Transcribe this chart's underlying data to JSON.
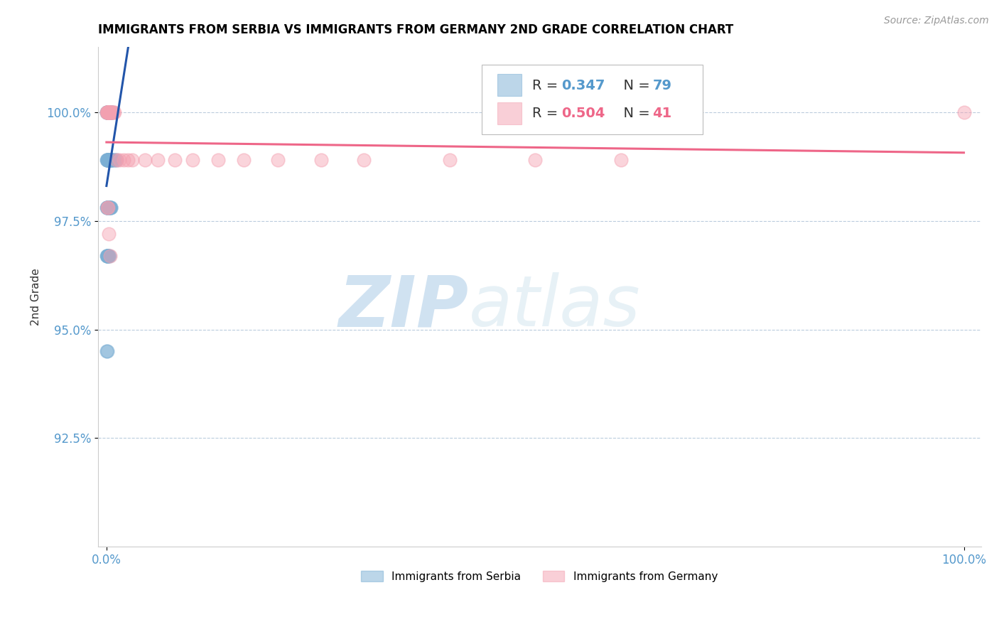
{
  "title": "IMMIGRANTS FROM SERBIA VS IMMIGRANTS FROM GERMANY 2ND GRADE CORRELATION CHART",
  "source_text": "Source: ZipAtlas.com",
  "ylabel": "2nd Grade",
  "legend_labels": [
    "Immigrants from Serbia",
    "Immigrants from Germany"
  ],
  "legend_R": [
    0.347,
    0.504
  ],
  "legend_N": [
    79,
    41
  ],
  "blue_color": "#7BAFD4",
  "pink_color": "#F4A0B0",
  "blue_line_color": "#2255AA",
  "pink_line_color": "#EE6688",
  "watermark_zip": "ZIP",
  "watermark_atlas": "atlas",
  "title_fontsize": 12,
  "axis_tick_color": "#5599CC",
  "grid_color": "#BBCCDD",
  "y_min": 90.0,
  "y_max": 101.5,
  "x_min": -1.0,
  "x_max": 102.0,
  "y_ticks": [
    92.5,
    95.0,
    97.5,
    100.0
  ],
  "y_tick_labels": [
    "92.5%",
    "95.0%",
    "97.5%",
    "100.0%"
  ],
  "x_ticks": [
    0.0,
    100.0
  ],
  "x_tick_labels": [
    "0.0%",
    "100.0%"
  ],
  "blue_x": [
    0.05,
    0.07,
    0.08,
    0.1,
    0.12,
    0.15,
    0.18,
    0.2,
    0.22,
    0.25,
    0.28,
    0.3,
    0.12,
    0.14,
    0.16,
    0.18,
    0.2,
    0.22,
    0.25,
    0.28,
    0.3,
    0.35,
    0.4,
    0.45,
    0.5,
    0.55,
    0.6,
    0.7,
    0.05,
    0.07,
    0.08,
    0.1,
    0.12,
    0.14,
    0.16,
    0.18,
    0.2,
    0.25,
    0.28,
    0.32,
    0.38,
    0.42,
    0.5,
    0.55,
    0.6,
    0.65,
    0.8,
    1.0,
    1.2,
    0.05,
    0.07,
    0.08,
    0.1,
    0.12,
    0.14,
    0.16,
    0.18,
    0.2,
    0.22,
    0.25,
    0.28,
    0.3,
    0.35,
    0.4,
    0.45,
    0.5,
    0.55,
    0.05,
    0.07,
    0.08,
    0.1,
    0.12,
    0.14,
    0.16,
    0.2,
    0.25,
    0.35,
    0.05,
    0.08
  ],
  "blue_y": [
    100.0,
    100.0,
    100.0,
    100.0,
    100.0,
    100.0,
    100.0,
    100.0,
    100.0,
    100.0,
    100.0,
    100.0,
    100.0,
    100.0,
    100.0,
    100.0,
    100.0,
    100.0,
    100.0,
    100.0,
    100.0,
    100.0,
    100.0,
    100.0,
    100.0,
    100.0,
    100.0,
    100.0,
    98.9,
    98.9,
    98.9,
    98.9,
    98.9,
    98.9,
    98.9,
    98.9,
    98.9,
    98.9,
    98.9,
    98.9,
    98.9,
    98.9,
    98.9,
    98.9,
    98.9,
    98.9,
    98.9,
    98.9,
    98.9,
    97.8,
    97.8,
    97.8,
    97.8,
    97.8,
    97.8,
    97.8,
    97.8,
    97.8,
    97.8,
    97.8,
    97.8,
    97.8,
    97.8,
    97.8,
    97.8,
    97.8,
    97.8,
    96.7,
    96.7,
    96.7,
    96.7,
    96.7,
    96.7,
    96.7,
    96.7,
    96.7,
    96.7,
    94.5,
    94.5
  ],
  "pink_x": [
    0.05,
    0.08,
    0.1,
    0.12,
    0.15,
    0.18,
    0.2,
    0.22,
    0.25,
    0.28,
    0.3,
    0.35,
    0.4,
    0.45,
    0.5,
    0.6,
    0.7,
    0.8,
    0.9,
    1.2,
    1.5,
    2.0,
    2.5,
    3.0,
    4.5,
    6.0,
    8.0,
    10.0,
    13.0,
    16.0,
    20.0,
    25.0,
    30.0,
    40.0,
    50.0,
    60.0,
    100.0,
    0.1,
    0.15,
    0.22,
    0.4
  ],
  "pink_y": [
    100.0,
    100.0,
    100.0,
    100.0,
    100.0,
    100.0,
    100.0,
    100.0,
    100.0,
    100.0,
    100.0,
    100.0,
    100.0,
    100.0,
    100.0,
    100.0,
    100.0,
    100.0,
    100.0,
    98.9,
    98.9,
    98.9,
    98.9,
    98.9,
    98.9,
    98.9,
    98.9,
    98.9,
    98.9,
    98.9,
    98.9,
    98.9,
    98.9,
    98.9,
    98.9,
    98.9,
    100.0,
    97.8,
    97.8,
    97.2,
    96.7
  ]
}
